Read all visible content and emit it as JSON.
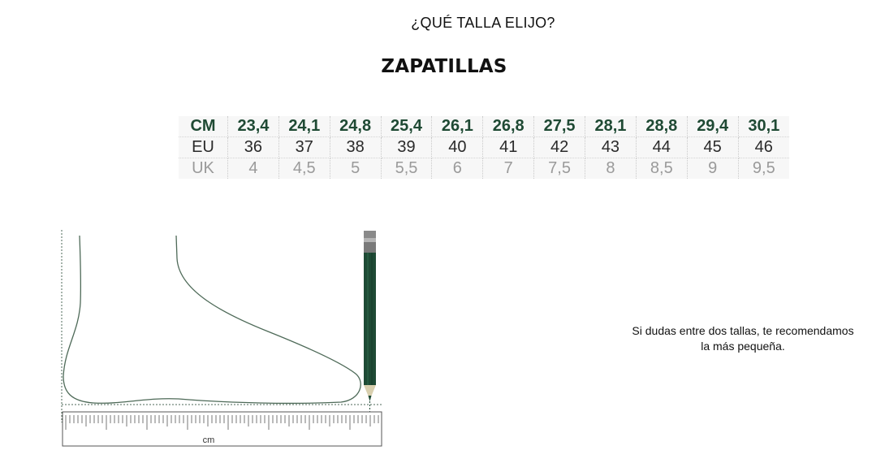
{
  "header": {
    "question": "¿QUÉ TALLA ELIJO?",
    "title": "ZAPATILLAS"
  },
  "size_table": {
    "rows": [
      {
        "label": "CM",
        "values": [
          "23,4",
          "24,1",
          "24,8",
          "25,4",
          "26,1",
          "26,8",
          "27,5",
          "28,1",
          "28,8",
          "29,4",
          "30,1"
        ]
      },
      {
        "label": "EU",
        "values": [
          "36",
          "37",
          "38",
          "39",
          "40",
          "41",
          "42",
          "43",
          "44",
          "45",
          "46"
        ]
      },
      {
        "label": "UK",
        "values": [
          "4",
          "4,5",
          "5",
          "5,5",
          "6",
          "7",
          "7,5",
          "8",
          "8,5",
          "9",
          "9,5"
        ]
      }
    ]
  },
  "illustration": {
    "ruler_unit": "cm",
    "colors": {
      "outline": "#4e6a58",
      "pencil": "#1e4a35",
      "ruler": "#555555"
    }
  },
  "advice": {
    "line1": "Si dudas entre dos tallas, te recomendamos",
    "line2": "la más pequeña."
  }
}
